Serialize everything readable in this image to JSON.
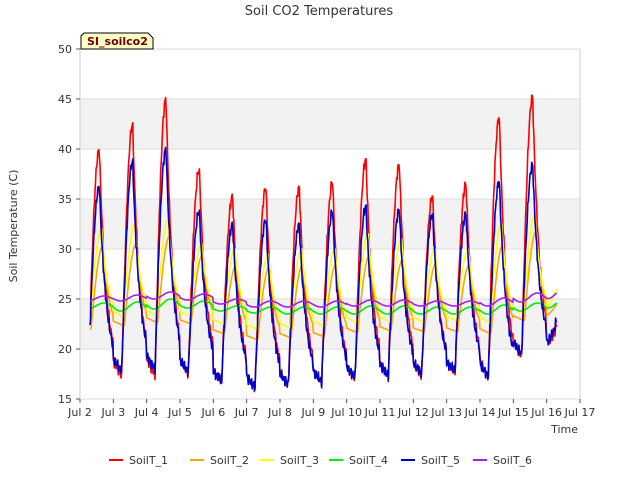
{
  "chart_data": {
    "type": "line",
    "title": "Soil CO2 Temperatures",
    "xlabel": "Time",
    "ylabel": "Soil Temperature (C)",
    "xlim": [
      2,
      17
    ],
    "ylim": [
      15,
      50
    ],
    "yticks": [
      15,
      20,
      25,
      30,
      35,
      40,
      45,
      50
    ],
    "xticks": [
      {
        "value": 2,
        "label": "Jul 2"
      },
      {
        "value": 3,
        "label": "Jul 3"
      },
      {
        "value": 4,
        "label": "Jul 4"
      },
      {
        "value": 5,
        "label": "Jul 5"
      },
      {
        "value": 6,
        "label": "Jul 6"
      },
      {
        "value": 7,
        "label": "Jul 7"
      },
      {
        "value": 8,
        "label": "Jul 8"
      },
      {
        "value": 9,
        "label": "Jul 9"
      },
      {
        "value": 10,
        "label": "Jul 10"
      },
      {
        "value": 11,
        "label": "Jul 11"
      },
      {
        "value": 12,
        "label": "Jul 12"
      },
      {
        "value": 13,
        "label": "Jul 13"
      },
      {
        "value": 14,
        "label": "Jul 14"
      },
      {
        "value": 15,
        "label": "Jul 15"
      },
      {
        "value": 16,
        "label": "Jul 16"
      },
      {
        "value": 17,
        "label": "Jul 17"
      }
    ],
    "station_label": "SI_soilco2",
    "legend_position": "bottom",
    "series": [
      {
        "name": "SoilT_1",
        "color": "#ff0000",
        "mins": [
          17.5,
          17.3,
          17.4,
          17.6,
          16.7,
          16.1,
          16.4,
          16.6,
          17.0,
          17.3,
          17.4,
          17.6,
          17.2,
          19.2
        ],
        "maxs": [
          40.0,
          42.5,
          45.0,
          38.0,
          35.3,
          36.2,
          36.2,
          36.7,
          39.0,
          38.5,
          35.3,
          36.5,
          43.2,
          45.3
        ],
        "end_value": 22.3
      },
      {
        "name": "SoilT_2",
        "color": "#ffa500",
        "mins": [
          22.0,
          22.3,
          22.6,
          22.5,
          21.5,
          20.9,
          21.1,
          21.2,
          21.6,
          21.8,
          21.7,
          21.7,
          21.5,
          22.8
        ],
        "maxs": [
          30.3,
          30.5,
          31.3,
          29.5,
          28.4,
          28.3,
          28.5,
          28.5,
          29.4,
          29.0,
          28.6,
          28.5,
          30.4,
          31.8
        ],
        "end_value": 24.5
      },
      {
        "name": "SoilT_3",
        "color": "#ffff00",
        "mins": [
          23.0,
          23.2,
          23.3,
          23.3,
          22.5,
          22.0,
          22.1,
          22.3,
          22.6,
          22.7,
          22.7,
          22.8,
          22.6,
          23.5
        ],
        "maxs": [
          32.0,
          32.5,
          33.0,
          30.5,
          30.0,
          29.5,
          30.0,
          30.0,
          31.5,
          31.0,
          30.0,
          30.0,
          32.5,
          33.5
        ],
        "end_value": 26.0
      },
      {
        "name": "SoilT_4",
        "color": "#00ee00",
        "mins": [
          24.0,
          23.8,
          24.0,
          24.1,
          23.8,
          23.6,
          23.5,
          23.5,
          23.5,
          23.5,
          23.5,
          23.5,
          23.5,
          23.8
        ],
        "maxs": [
          24.6,
          24.7,
          25.0,
          24.8,
          24.3,
          24.2,
          24.2,
          24.2,
          24.3,
          24.3,
          24.2,
          24.2,
          24.4,
          24.6
        ],
        "end_value": 24.6
      },
      {
        "name": "SoilT_5",
        "color": "#0000cc",
        "mins": [
          17.8,
          17.8,
          18.0,
          17.8,
          16.8,
          16.2,
          16.5,
          16.7,
          17.2,
          17.4,
          17.6,
          17.8,
          17.3,
          19.5
        ],
        "maxs": [
          36.3,
          38.8,
          40.0,
          33.8,
          32.5,
          33.0,
          32.5,
          33.8,
          34.3,
          34.0,
          33.5,
          33.5,
          36.8,
          38.5
        ],
        "end_value": 22.8
      },
      {
        "name": "SoilT_6",
        "color": "#a020f0",
        "mins": [
          24.8,
          24.8,
          25.0,
          24.9,
          24.5,
          24.2,
          24.2,
          24.2,
          24.3,
          24.3,
          24.3,
          24.3,
          24.3,
          24.7
        ],
        "maxs": [
          25.3,
          25.4,
          25.7,
          25.5,
          25.0,
          24.8,
          24.8,
          24.8,
          24.9,
          24.9,
          24.8,
          24.8,
          25.1,
          25.6
        ],
        "end_value": 25.6
      }
    ]
  }
}
